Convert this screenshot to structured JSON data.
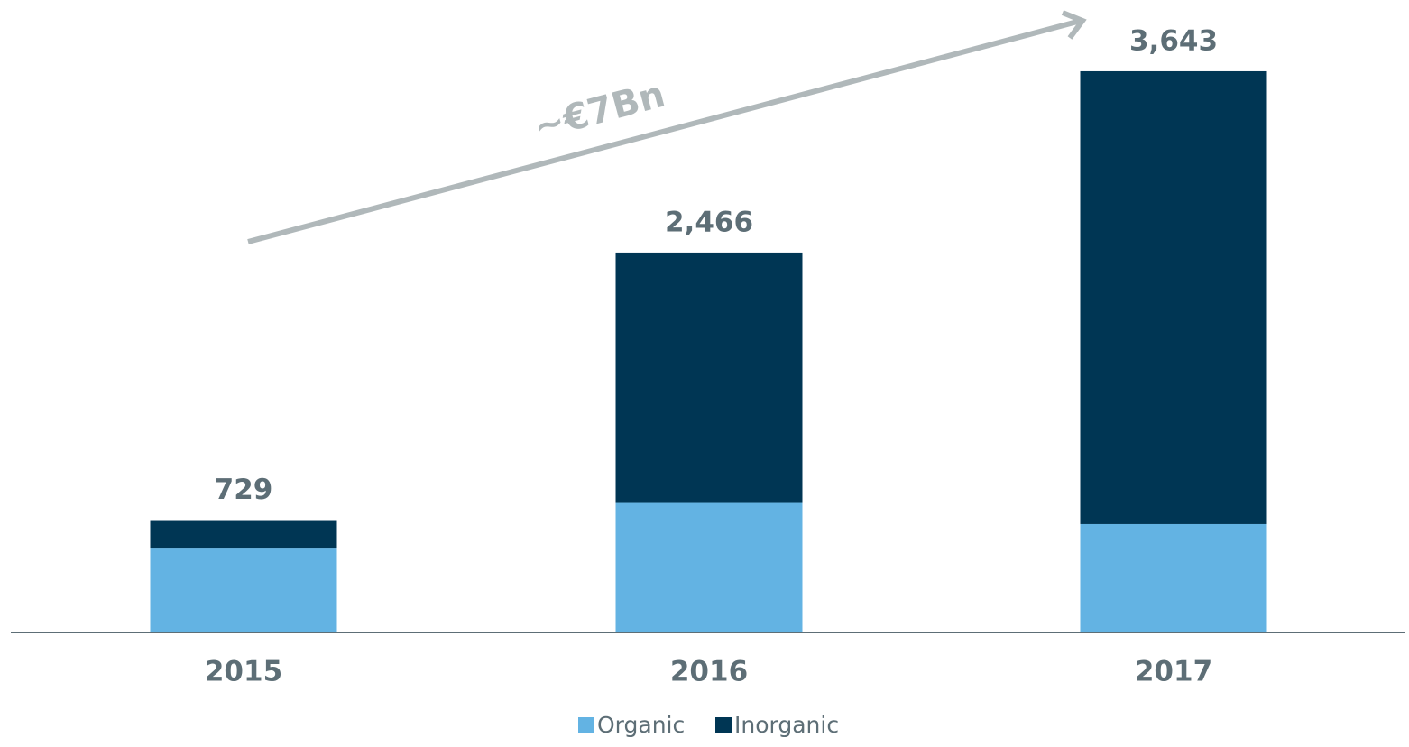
{
  "chart_data": {
    "type": "stacked_bar",
    "annotation": "~€7Bn",
    "categories": [
      "2015",
      "2016",
      "2017"
    ],
    "series": [
      {
        "name": "Organic",
        "color": "#63b3e3",
        "values": [
          550,
          846,
          703
        ]
      },
      {
        "name": "Inorganic",
        "color": "#003654",
        "values": [
          179,
          1620,
          2940
        ]
      }
    ],
    "total_labels": [
      "729",
      "2,466",
      "3,643"
    ],
    "ylim": [
      0,
      4000
    ]
  }
}
